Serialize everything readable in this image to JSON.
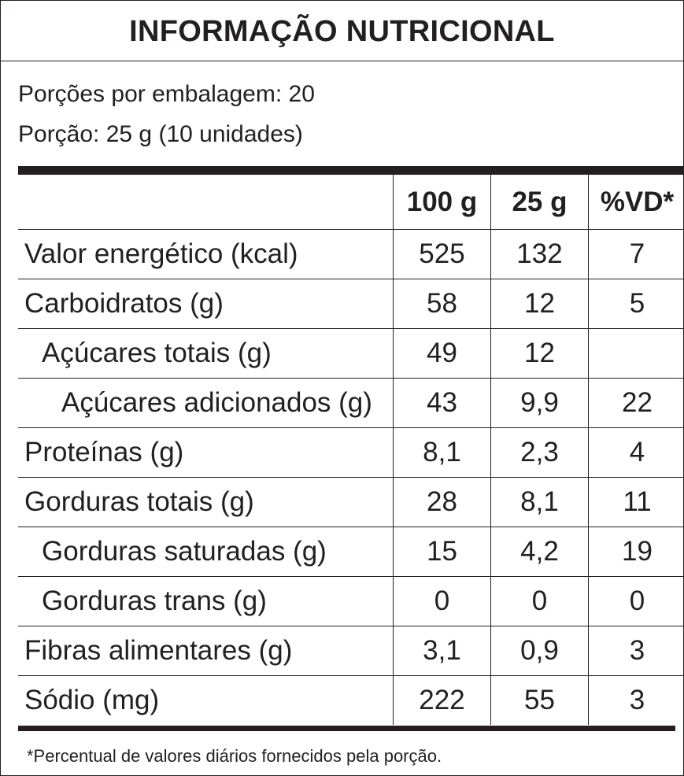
{
  "title": "INFORMAÇÃO NUTRICIONAL",
  "servings_per_package": "Porções por embalagem: 20",
  "serving_size": "Porção: 25 g (10 unidades)",
  "table": {
    "headers": [
      "",
      "100 g",
      "25 g",
      "%VD*"
    ],
    "rows": [
      {
        "name": "Valor energético (kcal)",
        "level": 0,
        "v100": "525",
        "v25": "132",
        "vd": "7"
      },
      {
        "name": "Carboidratos (g)",
        "level": 0,
        "v100": "58",
        "v25": "12",
        "vd": "5"
      },
      {
        "name": "Açúcares totais (g)",
        "level": 1,
        "v100": "49",
        "v25": "12",
        "vd": ""
      },
      {
        "name": "Açúcares adicionados (g)",
        "level": 2,
        "v100": "43",
        "v25": "9,9",
        "vd": "22"
      },
      {
        "name": "Proteínas (g)",
        "level": 0,
        "v100": "8,1",
        "v25": "2,3",
        "vd": "4"
      },
      {
        "name": "Gorduras totais (g)",
        "level": 0,
        "v100": "28",
        "v25": "8,1",
        "vd": "11"
      },
      {
        "name": "Gorduras saturadas (g)",
        "level": 1,
        "v100": "15",
        "v25": "4,2",
        "vd": "19"
      },
      {
        "name": "Gorduras trans (g)",
        "level": 1,
        "v100": "0",
        "v25": "0",
        "vd": "0"
      },
      {
        "name": "Fibras alimentares (g)",
        "level": 0,
        "v100": "3,1",
        "v25": "0,9",
        "vd": "3"
      },
      {
        "name": "Sódio (mg)",
        "level": 0,
        "v100": "222",
        "v25": "55",
        "vd": "3"
      }
    ]
  },
  "footnote": "*Percentual de valores diários fornecidos pela porção.",
  "colors": {
    "ink": "#231f20",
    "background": "#ffffff"
  }
}
